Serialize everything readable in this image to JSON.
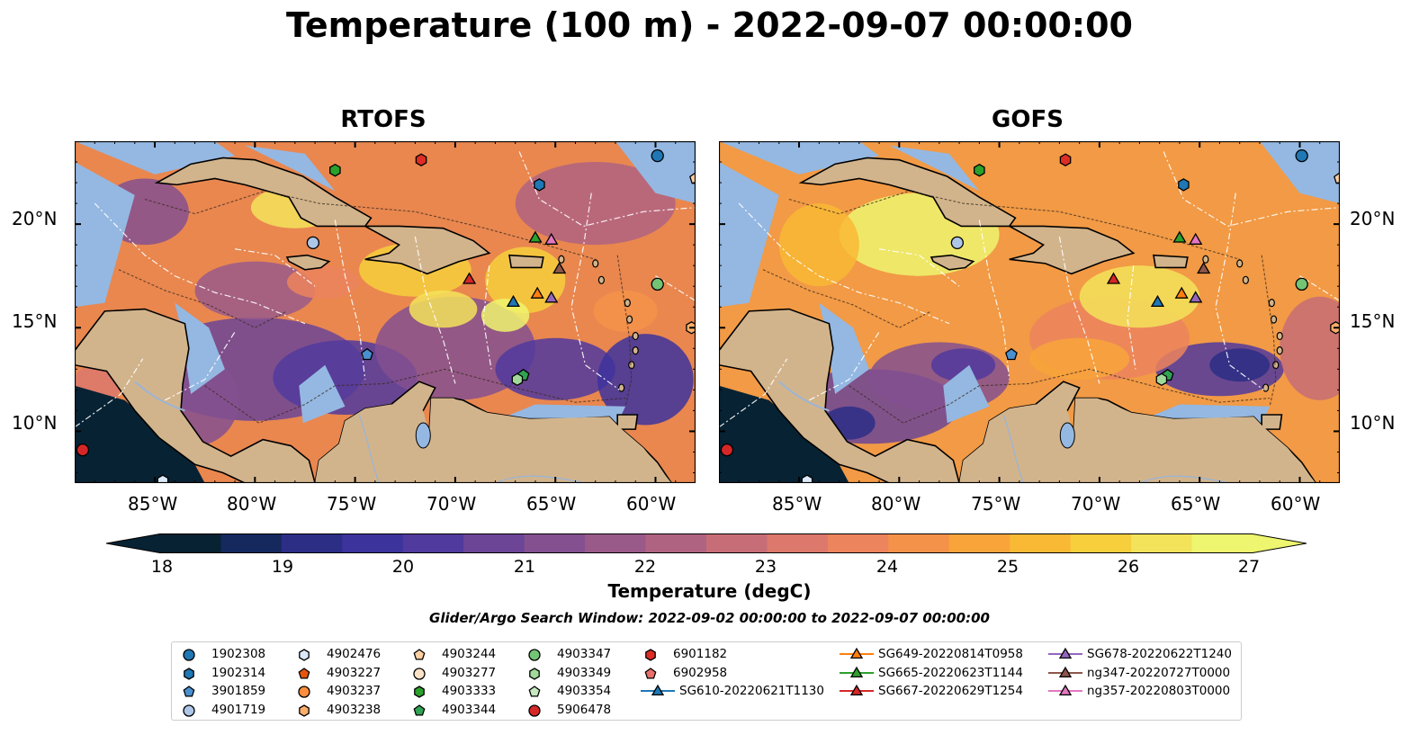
{
  "title": "Temperature (100 m) - 2022-09-07 00:00:00",
  "panels": [
    {
      "title": "RTOFS"
    },
    {
      "title": "GOFS"
    }
  ],
  "axes": {
    "lon_ticks": [
      "85°W",
      "80°W",
      "75°W",
      "70°W",
      "65°W",
      "60°W"
    ],
    "lat_ticks": [
      "20°N",
      "15°N",
      "10°N"
    ],
    "lon_range": [
      -89,
      -58
    ],
    "lat_range": [
      7.5,
      24
    ]
  },
  "colorbar": {
    "label": "Temperature (degC)",
    "ticks": [
      "18",
      "19",
      "20",
      "21",
      "22",
      "23",
      "24",
      "25",
      "26",
      "27"
    ],
    "range": [
      18,
      27
    ],
    "extend": "both"
  },
  "search_window": "Glider/Argo Search Window: 2022-09-02 00:00:00 to 2022-09-07 00:00:00",
  "colors": {
    "land": "#d2b48c",
    "shallow_water": "#94b8e2",
    "deep_cold": "#072233"
  },
  "legend": [
    {
      "label": "1902308",
      "marker": "circle",
      "color": "#1f77b4"
    },
    {
      "label": "1902314",
      "marker": "hexagon",
      "color": "#1f77b4"
    },
    {
      "label": "3901859",
      "marker": "pentagon",
      "color": "#4a90d0"
    },
    {
      "label": "4901719",
      "marker": "circle",
      "color": "#aec7e8"
    },
    {
      "label": "4902476",
      "marker": "hexagon",
      "color": "#dbe9f8"
    },
    {
      "label": "4903227",
      "marker": "pentagon",
      "color": "#e6550d"
    },
    {
      "label": "4903237",
      "marker": "circle",
      "color": "#fd8d3c"
    },
    {
      "label": "4903238",
      "marker": "hexagon",
      "color": "#fdae6b"
    },
    {
      "label": "4903244",
      "marker": "pentagon",
      "color": "#fdd0a2"
    },
    {
      "label": "4903277",
      "marker": "circle",
      "color": "#fde2c8"
    },
    {
      "label": "4903333",
      "marker": "hexagon",
      "color": "#2ca02c"
    },
    {
      "label": "4903344",
      "marker": "pentagon",
      "color": "#31a354"
    },
    {
      "label": "4903347",
      "marker": "circle",
      "color": "#74c476"
    },
    {
      "label": "4903349",
      "marker": "hexagon",
      "color": "#a1d99b"
    },
    {
      "label": "4903354",
      "marker": "pentagon",
      "color": "#c7e9c0"
    },
    {
      "label": "5906478",
      "marker": "circle",
      "color": "#d62728"
    },
    {
      "label": "6901182",
      "marker": "hexagon",
      "color": "#de2d26"
    },
    {
      "label": "6902958",
      "marker": "pentagon",
      "color": "#e8706a"
    },
    {
      "label": "SG610-20220621T1130",
      "marker": "triangle",
      "color": "#1f77b4"
    },
    {
      "label": "SG649-20220814T0958",
      "marker": "triangle",
      "color": "#ff7f0e"
    },
    {
      "label": "SG665-20220623T1144",
      "marker": "triangle",
      "color": "#2ca02c"
    },
    {
      "label": "SG667-20220629T1254",
      "marker": "triangle",
      "color": "#d62728"
    },
    {
      "label": "SG678-20220622T1240",
      "marker": "triangle",
      "color": "#9467bd"
    },
    {
      "label": "ng347-20220727T0000",
      "marker": "triangle",
      "color": "#8c564b"
    },
    {
      "label": "ng357-20220803T0000",
      "marker": "triangle",
      "color": "#e377c2"
    }
  ],
  "platforms": [
    {
      "id": "1902308",
      "lon": -59.9,
      "lat": 23.3
    },
    {
      "id": "1902314",
      "lon": -65.8,
      "lat": 21.9
    },
    {
      "id": "3901859",
      "lon": -74.4,
      "lat": 13.7
    },
    {
      "id": "4901719",
      "lon": -77.1,
      "lat": 19.1
    },
    {
      "id": "4902476",
      "lon": -84.6,
      "lat": 7.6
    },
    {
      "id": "4903244",
      "lon": -58.0,
      "lat": 22.2
    },
    {
      "id": "4903238",
      "lon": -58.2,
      "lat": 15.0
    },
    {
      "id": "4903333",
      "lon": -76.0,
      "lat": 22.6
    },
    {
      "id": "4903344",
      "lon": -66.6,
      "lat": 12.7
    },
    {
      "id": "4903347",
      "lon": -59.9,
      "lat": 17.1
    },
    {
      "id": "4903349",
      "lon": -66.9,
      "lat": 12.5
    },
    {
      "id": "5906478",
      "lon": -88.6,
      "lat": 9.1
    },
    {
      "id": "6901182",
      "lon": -71.7,
      "lat": 23.1
    },
    {
      "id": "SG610-20220621T1130",
      "lon": -67.1,
      "lat": 16.2
    },
    {
      "id": "SG649-20220814T0958",
      "lon": -65.9,
      "lat": 16.6
    },
    {
      "id": "SG665-20220623T1144",
      "lon": -66.0,
      "lat": 19.3
    },
    {
      "id": "SG667-20220629T1254",
      "lon": -69.3,
      "lat": 17.3
    },
    {
      "id": "SG678-20220622T1240",
      "lon": -65.2,
      "lat": 16.4
    },
    {
      "id": "ng347-20220727T0000",
      "lon": -64.8,
      "lat": 17.8
    },
    {
      "id": "ng357-20220803T0000",
      "lon": -65.2,
      "lat": 19.2
    }
  ]
}
